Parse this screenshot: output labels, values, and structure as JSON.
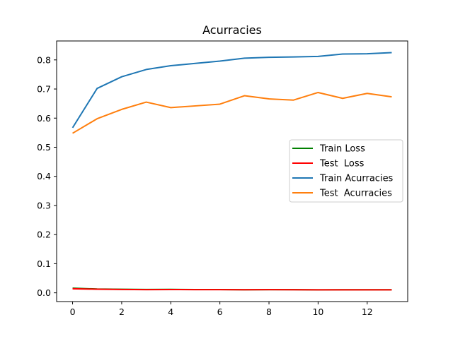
{
  "chart_data": {
    "type": "line",
    "title": "Acurracies",
    "xlabel": "",
    "ylabel": "",
    "x": [
      0,
      1,
      2,
      3,
      4,
      5,
      6,
      7,
      8,
      9,
      10,
      11,
      12,
      13
    ],
    "xlim": [
      -0.65,
      13.65
    ],
    "ylim": [
      -0.03,
      0.865
    ],
    "xticks": [
      0,
      2,
      4,
      6,
      8,
      10,
      12
    ],
    "xtick_labels": [
      "0",
      "2",
      "4",
      "6",
      "8",
      "10",
      "12"
    ],
    "yticks": [
      0.0,
      0.1,
      0.2,
      0.3,
      0.4,
      0.5,
      0.6,
      0.7,
      0.8
    ],
    "ytick_labels": [
      "0.0",
      "0.1",
      "0.2",
      "0.3",
      "0.4",
      "0.5",
      "0.6",
      "0.7",
      "0.8"
    ],
    "grid": false,
    "legend_position": "center-right",
    "series": [
      {
        "name": "Train Loss",
        "color": "#008000",
        "values": [
          0.016,
          0.013,
          0.012,
          0.0115,
          0.0118,
          0.0112,
          0.0112,
          0.0105,
          0.011,
          0.0108,
          0.0104,
          0.0106,
          0.0105,
          0.0105
        ]
      },
      {
        "name": "Test  Loss",
        "color": "#ff0000",
        "values": [
          0.014,
          0.0125,
          0.0115,
          0.011,
          0.0112,
          0.011,
          0.011,
          0.0105,
          0.0108,
          0.0106,
          0.0102,
          0.0104,
          0.0103,
          0.0102
        ]
      },
      {
        "name": "Train Acurracies",
        "color": "#1f77b4",
        "values": [
          0.567,
          0.702,
          0.742,
          0.767,
          0.78,
          0.788,
          0.796,
          0.806,
          0.809,
          0.81,
          0.812,
          0.82,
          0.821,
          0.825
        ]
      },
      {
        "name": "Test  Acurracies",
        "color": "#ff7f0e",
        "values": [
          0.548,
          0.598,
          0.63,
          0.655,
          0.636,
          0.642,
          0.648,
          0.677,
          0.666,
          0.662,
          0.688,
          0.668,
          0.685,
          0.673
        ]
      }
    ]
  }
}
